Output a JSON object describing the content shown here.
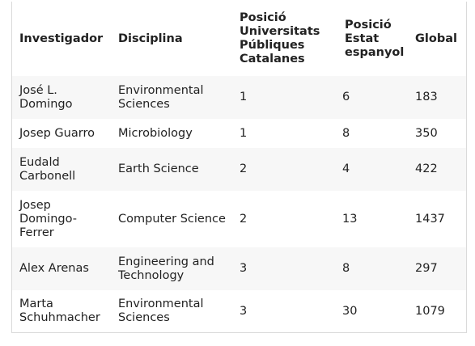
{
  "table": {
    "headers": [
      "Investigador",
      "Disciplina",
      "Posició Universitats Públiques Catalanes",
      "Posició Estat espanyol",
      "Global"
    ],
    "rows": [
      [
        "José L. Domingo",
        "Environmental Sciences",
        "1",
        "6",
        "183"
      ],
      [
        "Josep Guarro",
        "Microbiology",
        "1",
        "8",
        "350"
      ],
      [
        "Eudald Carbonell",
        "Earth Science",
        "2",
        "4",
        "422"
      ],
      [
        "Josep Domingo-Ferrer",
        "Computer Science",
        "2",
        "13",
        "1437"
      ],
      [
        "Alex Arenas",
        "Engineering and Technology",
        "3",
        "8",
        "297"
      ],
      [
        "Marta Schuhmacher",
        "Environmental Sciences",
        "3",
        "30",
        "1079"
      ]
    ]
  }
}
